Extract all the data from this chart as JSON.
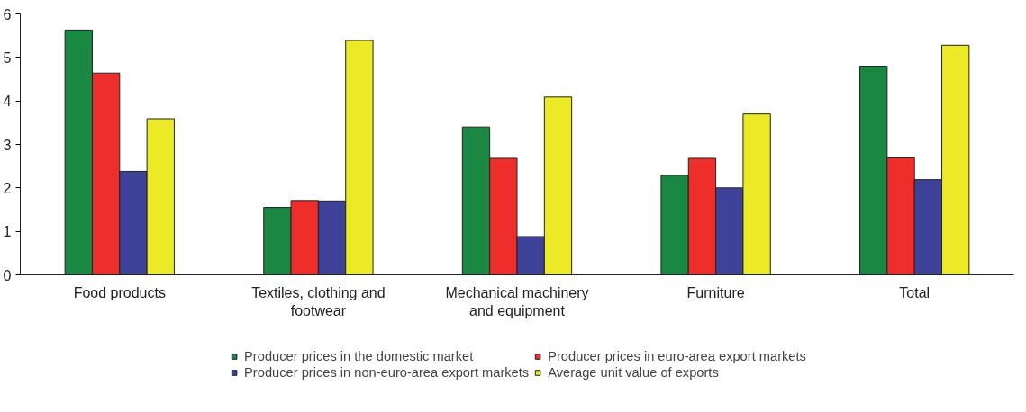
{
  "chart_data": {
    "type": "bar",
    "categories": [
      "Food products",
      "Textiles, clothing and footwear",
      "Mechanical machinery and equipment",
      "Furniture",
      "Total"
    ],
    "series": [
      {
        "name": "Producer prices in the domestic market",
        "color": "#1a8742",
        "values": [
          5.63,
          1.55,
          3.4,
          2.29,
          4.8
        ]
      },
      {
        "name": "Producer prices in euro-area export markets",
        "color": "#ee2e2a",
        "values": [
          4.64,
          1.71,
          2.68,
          2.68,
          2.69
        ]
      },
      {
        "name": "Producer prices in non-euro-area export markets",
        "color": "#3e4299",
        "values": [
          2.38,
          1.7,
          0.88,
          2.0,
          2.19
        ]
      },
      {
        "name": "Average unit value of exports",
        "color": "#ece926",
        "values": [
          3.59,
          5.39,
          4.09,
          3.7,
          5.28
        ]
      }
    ],
    "ylim": [
      0,
      6
    ],
    "yticks": [
      0,
      1,
      2,
      3,
      4,
      5,
      6
    ],
    "grid": false,
    "legend": "bottom"
  }
}
